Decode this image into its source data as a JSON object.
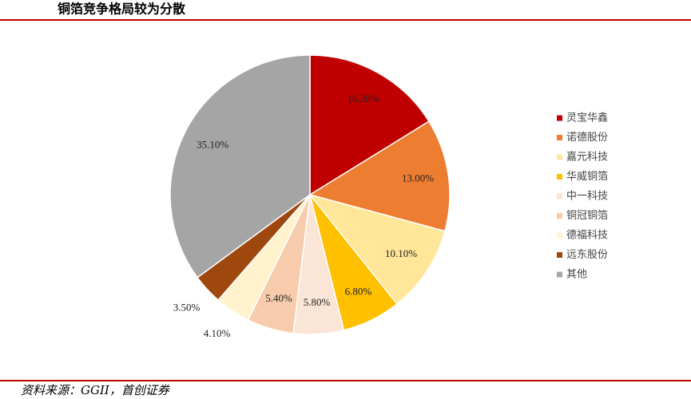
{
  "title": "铜箔竞争格局较为分散",
  "source": "资料来源：GGII，首创证券",
  "chart_data": {
    "type": "pie",
    "categories": [
      "灵宝华鑫",
      "诺德股份",
      "嘉元科技",
      "华威铜箔",
      "中一科技",
      "铜冠铜箔",
      "德福科技",
      "远东股份",
      "其他"
    ],
    "values": [
      16.2,
      13.0,
      10.1,
      6.8,
      5.8,
      5.4,
      4.1,
      3.5,
      35.1
    ],
    "value_labels": [
      "16.20%",
      "13.00%",
      "10.10%",
      "6.80%",
      "5.80%",
      "5.40%",
      "4.10%",
      "3.50%",
      "35.10%"
    ],
    "colors": [
      "#c00000",
      "#ed7d31",
      "#ffe699",
      "#ffc000",
      "#fbe5d6",
      "#f8cbad",
      "#fff2cc",
      "#9e480e",
      "#a5a5a5"
    ],
    "legend": "right"
  }
}
